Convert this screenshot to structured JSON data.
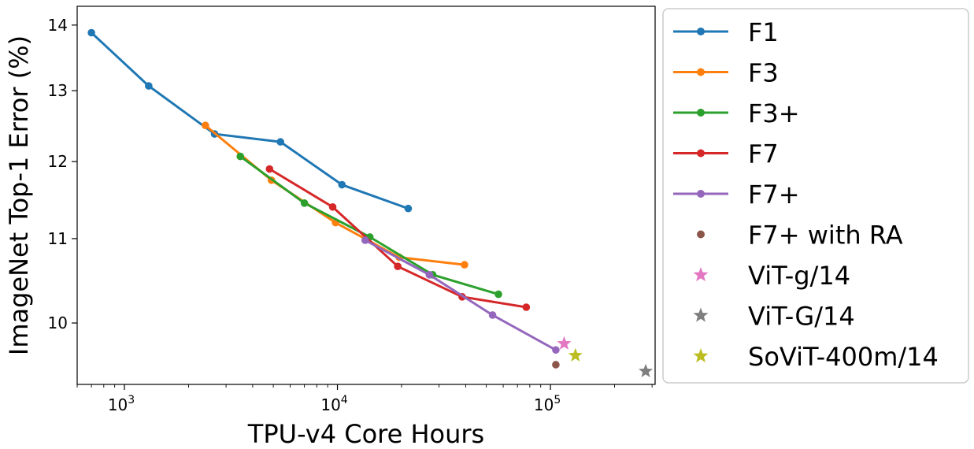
{
  "chart_data": {
    "type": "line",
    "xscale": "log",
    "yscale": "log",
    "xlabel": "TPU-v4 Core Hours",
    "ylabel": "ImageNet Top-1 Error (%)",
    "xlim": [
      600,
      310000
    ],
    "ylim": [
      9.33,
      14.3
    ],
    "xticks": [
      {
        "value": 1000,
        "base": "10",
        "exp": "3"
      },
      {
        "value": 10000,
        "base": "10",
        "exp": "4"
      },
      {
        "value": 100000,
        "base": "10",
        "exp": "5"
      }
    ],
    "yticks": [
      {
        "value": 10,
        "label": "10"
      },
      {
        "value": 11,
        "label": "11"
      },
      {
        "value": 12,
        "label": "12"
      },
      {
        "value": 13,
        "label": "13"
      },
      {
        "value": 14,
        "label": "14"
      }
    ],
    "series": [
      {
        "name": "F1",
        "color": "#1f77b4",
        "marker": "circle",
        "line": true,
        "x": [
          700,
          1300,
          2650,
          5400,
          10500,
          21500
        ],
        "y": [
          13.88,
          13.07,
          12.38,
          12.27,
          11.69,
          11.38
        ]
      },
      {
        "name": "F3",
        "color": "#ff7f0e",
        "marker": "circle",
        "line": true,
        "x": [
          2400,
          4900,
          9800,
          19500,
          39500
        ],
        "y": [
          12.5,
          11.75,
          11.2,
          10.77,
          10.68
        ]
      },
      {
        "name": "F3+",
        "color": "#2ca02c",
        "marker": "circle",
        "line": true,
        "x": [
          3500,
          7000,
          14200,
          28000,
          57000
        ],
        "y": [
          12.07,
          11.45,
          11.02,
          10.56,
          10.33
        ]
      },
      {
        "name": "F7",
        "color": "#d62728",
        "marker": "circle",
        "line": true,
        "x": [
          4800,
          9500,
          19200,
          38500,
          77000
        ],
        "y": [
          11.9,
          11.4,
          10.66,
          10.3,
          10.18
        ]
      },
      {
        "name": "F7+",
        "color": "#9467bd",
        "marker": "circle",
        "line": true,
        "x": [
          13500,
          27000,
          53500,
          106000
        ],
        "y": [
          10.98,
          10.56,
          10.09,
          9.7
        ]
      },
      {
        "name": "F7+ with RA",
        "color": "#8c564b",
        "marker": "circle",
        "line": false,
        "x": [
          106000
        ],
        "y": [
          9.54
        ]
      },
      {
        "name": "ViT-g/14",
        "color": "#e377c2",
        "marker": "star",
        "line": false,
        "x": [
          116000
        ],
        "y": [
          9.77
        ]
      },
      {
        "name": "ViT-G/14",
        "color": "#7f7f7f",
        "marker": "star",
        "line": false,
        "x": [
          280000
        ],
        "y": [
          9.47
        ]
      },
      {
        "name": "SoViT-400m/14",
        "color": "#bcbd22",
        "marker": "star",
        "line": false,
        "x": [
          131000
        ],
        "y": [
          9.64
        ]
      }
    ]
  }
}
